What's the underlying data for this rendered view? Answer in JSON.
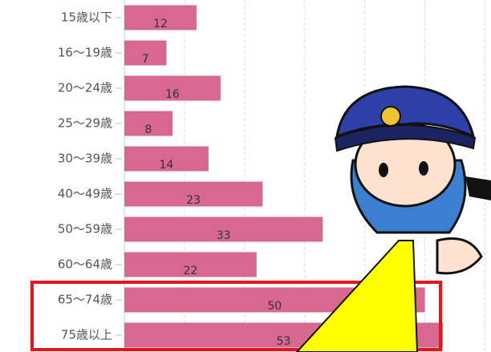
{
  "chart_data": {
    "type": "barh",
    "categories": [
      "15歳以下",
      "16〜19歳",
      "20〜24歳",
      "25〜29歳",
      "30〜39歳",
      "40〜49歳",
      "50〜59歳",
      "60〜64歳",
      "65〜74歳",
      "75歳以上"
    ],
    "values": [
      12,
      7,
      16,
      8,
      14,
      23,
      33,
      22,
      50,
      53
    ],
    "color": "#d8688f",
    "xlim": [
      0,
      61
    ],
    "xticks": [
      0,
      10,
      20,
      30,
      40,
      50,
      60
    ],
    "grid": true
  }
}
